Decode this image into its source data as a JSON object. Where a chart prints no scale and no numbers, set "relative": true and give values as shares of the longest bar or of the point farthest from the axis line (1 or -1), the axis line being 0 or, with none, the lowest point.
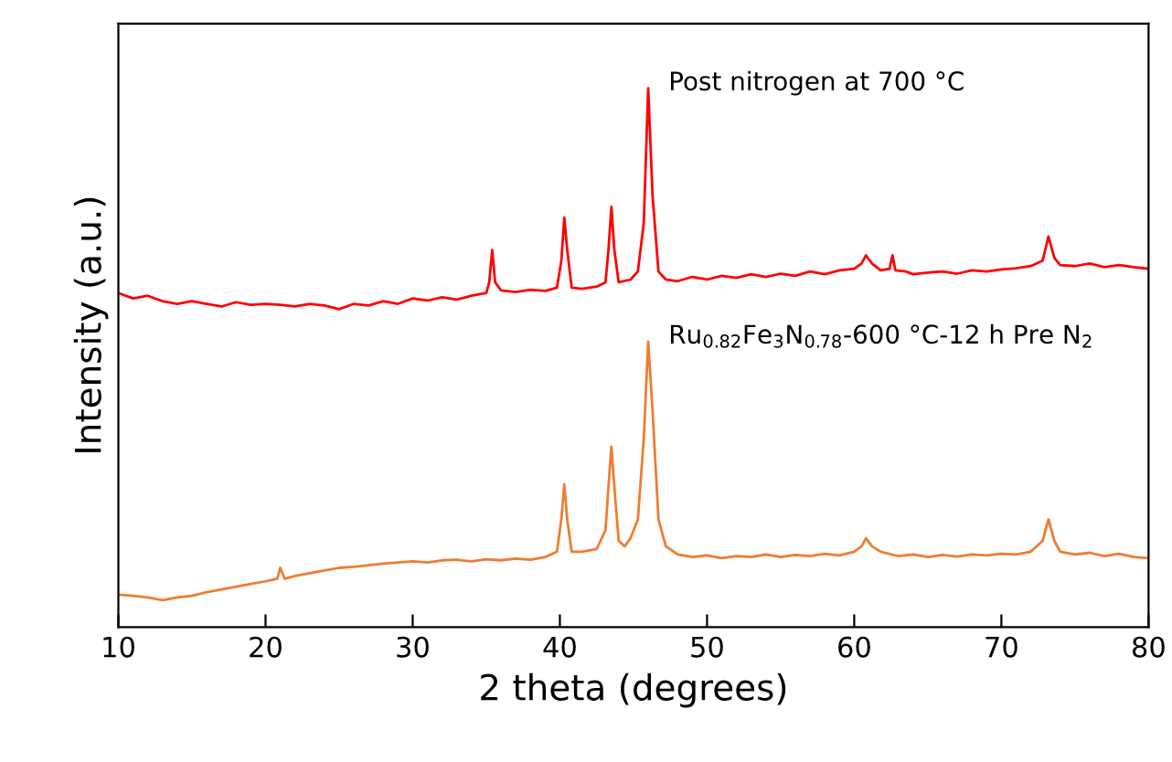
{
  "chart_data": {
    "type": "line",
    "relative": true,
    "xlabel": "2 theta (degrees)",
    "ylabel": "Intensity (a.u.)",
    "xlim": [
      10,
      80
    ],
    "xticks": [
      10,
      20,
      30,
      40,
      50,
      60,
      70,
      80
    ],
    "legend": false,
    "grid": false,
    "marker": "none",
    "line_style": "solid",
    "series": [
      {
        "name": "Post nitrogen at 700 °C",
        "color": "#ff0000",
        "x": [
          10,
          11,
          12,
          13,
          14,
          15,
          16,
          17,
          18,
          19,
          20,
          21,
          22,
          23,
          24,
          25,
          26,
          27,
          28,
          29,
          30,
          31,
          32,
          33,
          34,
          35,
          35.2,
          35.4,
          35.6,
          36,
          37,
          38,
          39,
          39.8,
          40.1,
          40.3,
          40.5,
          40.8,
          41.5,
          42.5,
          43.1,
          43.3,
          43.5,
          43.7,
          44,
          44.8,
          45.3,
          45.7,
          46,
          46.3,
          46.7,
          47.2,
          48,
          49,
          50,
          51,
          52,
          53,
          54,
          55,
          56,
          57,
          58,
          59,
          60,
          60.5,
          60.8,
          61.2,
          61.8,
          62.4,
          62.6,
          62.8,
          63.5,
          64,
          65,
          66,
          67,
          68,
          69,
          70,
          71,
          72,
          72.8,
          73.2,
          73.6,
          74,
          75,
          76,
          77,
          78,
          79,
          80
        ],
        "values": [
          0.62,
          0.61,
          0.615,
          0.605,
          0.6,
          0.605,
          0.6,
          0.595,
          0.603,
          0.598,
          0.6,
          0.598,
          0.595,
          0.6,
          0.597,
          0.59,
          0.6,
          0.597,
          0.605,
          0.6,
          0.61,
          0.606,
          0.612,
          0.608,
          0.615,
          0.62,
          0.64,
          0.7,
          0.64,
          0.625,
          0.622,
          0.626,
          0.624,
          0.63,
          0.68,
          0.76,
          0.7,
          0.63,
          0.628,
          0.632,
          0.64,
          0.7,
          0.78,
          0.7,
          0.64,
          0.645,
          0.66,
          0.75,
          1.0,
          0.8,
          0.66,
          0.645,
          0.642,
          0.65,
          0.645,
          0.652,
          0.648,
          0.655,
          0.65,
          0.656,
          0.652,
          0.66,
          0.655,
          0.662,
          0.665,
          0.675,
          0.69,
          0.675,
          0.662,
          0.665,
          0.69,
          0.662,
          0.66,
          0.655,
          0.658,
          0.66,
          0.656,
          0.662,
          0.66,
          0.664,
          0.666,
          0.67,
          0.68,
          0.725,
          0.685,
          0.672,
          0.67,
          0.675,
          0.668,
          0.672,
          0.668,
          0.665
        ]
      },
      {
        "name": "Ru$_{0.82}$Fe$_{3}$N$_{0.78}$-600 °C-12 h Pre N$_{2}$",
        "color": "#ed7d31",
        "x": [
          10,
          11,
          12,
          13,
          14,
          15,
          16,
          17,
          18,
          19,
          20,
          20.8,
          21,
          21.3,
          22,
          23,
          24,
          25,
          26,
          27,
          28,
          29,
          30,
          31,
          32,
          33,
          34,
          35,
          36,
          37,
          38,
          39,
          39.8,
          40.1,
          40.3,
          40.5,
          40.8,
          41.5,
          42.5,
          43.1,
          43.3,
          43.5,
          43.7,
          44,
          44.4,
          44.8,
          45.3,
          45.7,
          46,
          46.3,
          46.7,
          47.2,
          48,
          49,
          50,
          51,
          52,
          53,
          54,
          55,
          56,
          57,
          58,
          59,
          60,
          60.5,
          60.8,
          61.2,
          61.8,
          62.5,
          63,
          64,
          65,
          66,
          67,
          68,
          69,
          70,
          71,
          72,
          72.8,
          73.2,
          73.6,
          74,
          75,
          76,
          77,
          78,
          79,
          80
        ],
        "values": [
          0.06,
          0.058,
          0.055,
          0.05,
          0.055,
          0.058,
          0.065,
          0.07,
          0.075,
          0.08,
          0.085,
          0.09,
          0.11,
          0.09,
          0.095,
          0.1,
          0.105,
          0.11,
          0.112,
          0.115,
          0.118,
          0.12,
          0.122,
          0.12,
          0.124,
          0.125,
          0.122,
          0.126,
          0.124,
          0.127,
          0.125,
          0.13,
          0.14,
          0.2,
          0.265,
          0.2,
          0.14,
          0.14,
          0.145,
          0.18,
          0.26,
          0.335,
          0.26,
          0.16,
          0.15,
          0.165,
          0.2,
          0.35,
          0.53,
          0.4,
          0.2,
          0.15,
          0.135,
          0.13,
          0.133,
          0.128,
          0.132,
          0.13,
          0.135,
          0.13,
          0.134,
          0.132,
          0.136,
          0.133,
          0.14,
          0.15,
          0.165,
          0.15,
          0.14,
          0.135,
          0.132,
          0.135,
          0.13,
          0.134,
          0.131,
          0.135,
          0.133,
          0.136,
          0.135,
          0.14,
          0.16,
          0.2,
          0.16,
          0.14,
          0.135,
          0.138,
          0.132,
          0.136,
          0.13,
          0.128
        ]
      }
    ]
  }
}
